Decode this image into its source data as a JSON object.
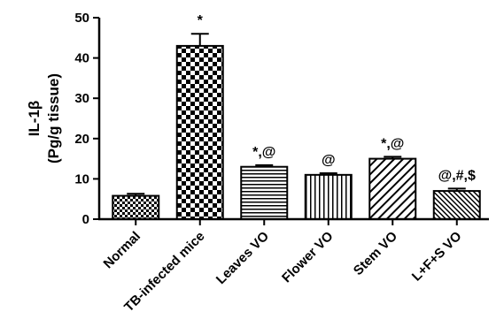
{
  "chart_data": {
    "type": "bar",
    "ylabel_line1": "IL-1β",
    "ylabel_line2": "(Pg/g tissue)",
    "ylim": [
      0,
      50
    ],
    "yticks": [
      "0",
      "10",
      "20",
      "30",
      "40",
      "50"
    ],
    "categories": [
      "Normal",
      "TB-infected mice",
      "Leaves VO",
      "Flower VO",
      "Stem VO",
      "L+F+S VO"
    ],
    "values": [
      5.8,
      43,
      13,
      11,
      15,
      7
    ],
    "errors": [
      0.5,
      3,
      0.4,
      0.4,
      0.5,
      0.6
    ],
    "annotations": [
      "",
      "*",
      "*,@",
      "@",
      "*,@",
      "@,#,$"
    ],
    "patterns": [
      "checker-small",
      "checker-large",
      "horizontal-lines",
      "vertical-lines",
      "diagonal-wide",
      "diagonal-dense"
    ]
  }
}
